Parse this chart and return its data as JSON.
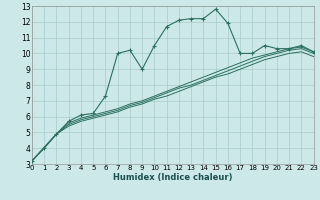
{
  "xlabel": "Humidex (Indice chaleur)",
  "bg_color": "#cce8e8",
  "grid_color": "#aacccc",
  "line_color": "#2a7060",
  "xlim": [
    0,
    23
  ],
  "ylim": [
    3,
    13
  ],
  "xticks": [
    0,
    1,
    2,
    3,
    4,
    5,
    6,
    7,
    8,
    9,
    10,
    11,
    12,
    13,
    14,
    15,
    16,
    17,
    18,
    19,
    20,
    21,
    22,
    23
  ],
  "yticks": [
    3,
    4,
    5,
    6,
    7,
    8,
    9,
    10,
    11,
    12,
    13
  ],
  "main_x": [
    0,
    1,
    2,
    3,
    4,
    5,
    6,
    7,
    8,
    9,
    10,
    11,
    12,
    13,
    14,
    15,
    16,
    17,
    18,
    19,
    20,
    21,
    22,
    23
  ],
  "main_y": [
    3.2,
    4.0,
    4.9,
    5.7,
    6.1,
    6.2,
    7.3,
    10.0,
    10.2,
    9.0,
    10.5,
    11.7,
    12.1,
    12.2,
    12.2,
    12.8,
    11.9,
    10.0,
    10.0,
    10.5,
    10.3,
    10.3,
    10.5,
    10.1
  ],
  "ref1_x": [
    0,
    2,
    3,
    4,
    5,
    6,
    7,
    8,
    9,
    10,
    11,
    12,
    13,
    14,
    15,
    16,
    17,
    18,
    19,
    20,
    21,
    22,
    23
  ],
  "ref1_y": [
    3.2,
    4.9,
    5.6,
    5.9,
    6.1,
    6.3,
    6.5,
    6.8,
    7.0,
    7.3,
    7.6,
    7.9,
    8.2,
    8.5,
    8.8,
    9.1,
    9.4,
    9.7,
    9.9,
    10.1,
    10.3,
    10.4,
    10.1
  ],
  "ref2_x": [
    0,
    2,
    3,
    4,
    5,
    6,
    7,
    8,
    9,
    10,
    11,
    12,
    13,
    14,
    15,
    16,
    17,
    18,
    19,
    20,
    21,
    22,
    23
  ],
  "ref2_y": [
    3.2,
    4.9,
    5.5,
    5.8,
    6.0,
    6.2,
    6.4,
    6.7,
    6.9,
    7.2,
    7.5,
    7.8,
    8.0,
    8.3,
    8.6,
    8.9,
    9.2,
    9.5,
    9.8,
    10.0,
    10.2,
    10.3,
    10.0
  ],
  "ref3_x": [
    0,
    2,
    3,
    4,
    5,
    6,
    7,
    8,
    9,
    10,
    11,
    12,
    13,
    14,
    15,
    16,
    17,
    18,
    19,
    20,
    21,
    22,
    23
  ],
  "ref3_y": [
    3.2,
    4.9,
    5.4,
    5.7,
    5.9,
    6.1,
    6.3,
    6.6,
    6.8,
    7.1,
    7.3,
    7.6,
    7.9,
    8.2,
    8.5,
    8.7,
    9.0,
    9.3,
    9.6,
    9.8,
    10.0,
    10.1,
    9.8
  ]
}
